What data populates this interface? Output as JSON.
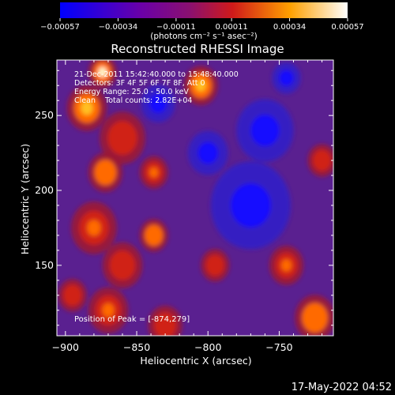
{
  "chart_data": {
    "type": "heatmap",
    "title": "Reconstructed RHESSI Image",
    "xlabel": "Heliocentric X (arcsec)",
    "ylabel": "Heliocentric Y (arcsec)",
    "xlim": [
      -906,
      -712
    ],
    "ylim": [
      103,
      287
    ],
    "x_ticks": [
      -900,
      -850,
      -800,
      -750
    ],
    "x_tick_labels": [
      "−900",
      "−850",
      "−800",
      "−750"
    ],
    "y_ticks": [
      150,
      200,
      250
    ],
    "y_tick_labels": [
      "150",
      "200",
      "250"
    ],
    "colorbar": {
      "range": [
        -0.00057,
        0.00057
      ],
      "ticks": [
        -0.00057,
        -0.00034,
        -0.00011,
        0.00011,
        0.00034,
        0.00057
      ],
      "tick_labels": [
        "−0.00057",
        "−0.00034",
        "−0.00011",
        "0.00011",
        "0.00034",
        "0.00057"
      ],
      "unit_label": "(photons cm⁻² s⁻¹ asec⁻²)",
      "colors": [
        "#0000ff",
        "#6a00a8",
        "#c21e3a",
        "#ff5a00",
        "#ffb400",
        "#ffffff"
      ]
    },
    "grid": false,
    "annotations": [
      "21-Dec-2011 15:42:40.000 to 15:48:40.000",
      "Detectors: 3F 4F 5F 6F 7F 8F, Att 0",
      "Energy Range: 25.0 - 50.0 keV",
      "Clean    Total counts: 2.82E+04"
    ],
    "peak_label": "Position of Peak = [-874,279]",
    "peak_position": [
      -874,
      279
    ],
    "hot_regions": [
      {
        "x": -874,
        "y": 279,
        "level": 1.0,
        "r": 10
      },
      {
        "x": -885,
        "y": 255,
        "level": 0.9,
        "r": 14
      },
      {
        "x": -860,
        "y": 235,
        "level": 0.7,
        "r": 16
      },
      {
        "x": -872,
        "y": 212,
        "level": 0.85,
        "r": 12
      },
      {
        "x": -838,
        "y": 212,
        "level": 0.8,
        "r": 10
      },
      {
        "x": -880,
        "y": 175,
        "level": 0.8,
        "r": 16
      },
      {
        "x": -860,
        "y": 150,
        "level": 0.7,
        "r": 14
      },
      {
        "x": -838,
        "y": 170,
        "level": 0.85,
        "r": 10
      },
      {
        "x": -870,
        "y": 120,
        "level": 0.75,
        "r": 14
      },
      {
        "x": -830,
        "y": 110,
        "level": 0.6,
        "r": 12
      },
      {
        "x": -805,
        "y": 270,
        "level": 0.9,
        "r": 12
      },
      {
        "x": -795,
        "y": 150,
        "level": 0.6,
        "r": 10
      },
      {
        "x": -745,
        "y": 150,
        "level": 0.75,
        "r": 12
      },
      {
        "x": -725,
        "y": 115,
        "level": 0.85,
        "r": 14
      },
      {
        "x": -720,
        "y": 220,
        "level": 0.6,
        "r": 10
      },
      {
        "x": -895,
        "y": 130,
        "level": 0.6,
        "r": 10
      }
    ],
    "cold_regions": [
      {
        "x": -770,
        "y": 190,
        "r": 28
      },
      {
        "x": -760,
        "y": 240,
        "r": 20
      },
      {
        "x": -800,
        "y": 225,
        "r": 14
      },
      {
        "x": -835,
        "y": 258,
        "r": 12
      },
      {
        "x": -745,
        "y": 275,
        "r": 10
      }
    ]
  },
  "footer": {
    "timestamp": "17-May-2022 04:52"
  }
}
